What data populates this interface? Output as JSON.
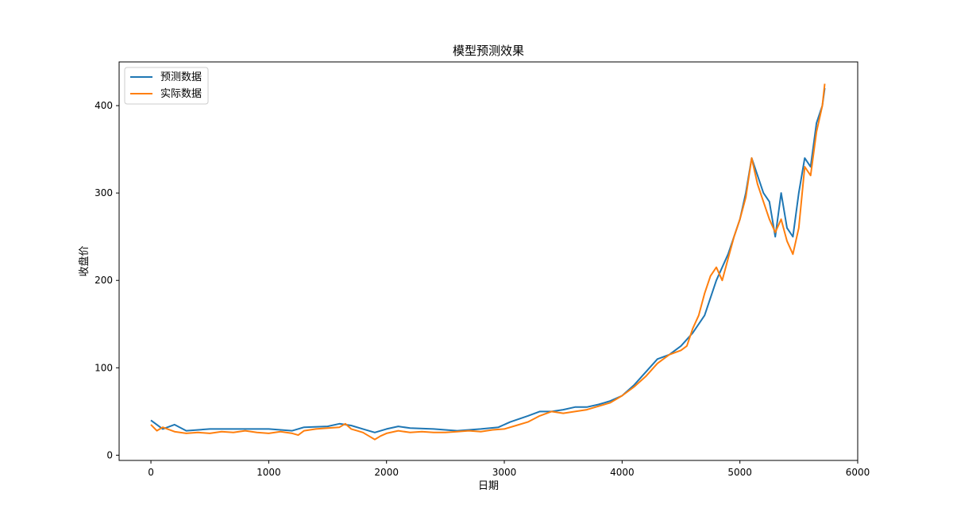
{
  "chart_data": {
    "type": "line",
    "title": "模型预测效果",
    "xlabel": "日期",
    "ylabel": "收盘价",
    "xlim": [
      -270,
      6000
    ],
    "ylim": [
      -6,
      450
    ],
    "x_ticks": [
      0,
      1000,
      2000,
      3000,
      4000,
      5000,
      6000
    ],
    "x_tick_labels": [
      "0",
      "1000",
      "2000",
      "3000",
      "4000",
      "5000",
      "6000"
    ],
    "y_ticks": [
      0,
      100,
      200,
      300,
      400
    ],
    "y_tick_labels": [
      "0",
      "100",
      "200",
      "300",
      "400"
    ],
    "grid": false,
    "legend_position": "upper-left",
    "colors": {
      "predicted": "#1f77b4",
      "actual": "#ff7f0e"
    },
    "series": [
      {
        "name": "预测数据",
        "color": "#1f77b4",
        "x": [
          0,
          100,
          200,
          300,
          500,
          800,
          1000,
          1200,
          1300,
          1500,
          1600,
          1700,
          1800,
          1900,
          2000,
          2100,
          2200,
          2400,
          2600,
          2800,
          2950,
          3050,
          3200,
          3300,
          3400,
          3500,
          3600,
          3700,
          3800,
          3900,
          4000,
          4100,
          4200,
          4300,
          4400,
          4500,
          4600,
          4700,
          4800,
          4900,
          5000,
          5050,
          5100,
          5150,
          5200,
          5250,
          5300,
          5350,
          5400,
          5450,
          5500,
          5550,
          5600,
          5650,
          5700,
          5720
        ],
        "y": [
          40,
          30,
          35,
          28,
          30,
          30,
          30,
          28,
          32,
          33,
          36,
          34,
          30,
          26,
          30,
          33,
          31,
          30,
          28,
          30,
          32,
          38,
          45,
          50,
          50,
          52,
          55,
          55,
          58,
          62,
          68,
          80,
          95,
          110,
          115,
          125,
          140,
          160,
          200,
          230,
          270,
          300,
          340,
          320,
          300,
          290,
          250,
          300,
          260,
          250,
          300,
          340,
          330,
          380,
          400,
          420
        ]
      },
      {
        "name": "实际数据",
        "color": "#ff7f0e",
        "x": [
          0,
          50,
          100,
          200,
          300,
          400,
          500,
          600,
          700,
          800,
          900,
          1000,
          1100,
          1200,
          1250,
          1300,
          1400,
          1500,
          1600,
          1650,
          1700,
          1750,
          1800,
          1850,
          1900,
          1950,
          2000,
          2100,
          2200,
          2300,
          2400,
          2500,
          2600,
          2700,
          2800,
          2900,
          3000,
          3100,
          3200,
          3300,
          3400,
          3500,
          3600,
          3700,
          3800,
          3900,
          4000,
          4100,
          4200,
          4300,
          4400,
          4500,
          4550,
          4600,
          4650,
          4700,
          4750,
          4800,
          4850,
          4900,
          4950,
          5000,
          5050,
          5100,
          5150,
          5200,
          5250,
          5300,
          5350,
          5400,
          5450,
          5500,
          5550,
          5600,
          5650,
          5700,
          5720
        ],
        "y": [
          35,
          28,
          32,
          27,
          25,
          26,
          25,
          27,
          26,
          28,
          26,
          25,
          27,
          25,
          23,
          28,
          30,
          31,
          32,
          36,
          30,
          28,
          26,
          22,
          18,
          22,
          25,
          28,
          26,
          27,
          26,
          26,
          27,
          28,
          27,
          29,
          30,
          34,
          38,
          45,
          50,
          48,
          50,
          52,
          56,
          60,
          68,
          78,
          90,
          105,
          115,
          120,
          125,
          145,
          160,
          185,
          205,
          215,
          200,
          225,
          250,
          270,
          295,
          340,
          310,
          290,
          270,
          255,
          270,
          245,
          230,
          260,
          330,
          320,
          370,
          400,
          425
        ]
      }
    ]
  }
}
